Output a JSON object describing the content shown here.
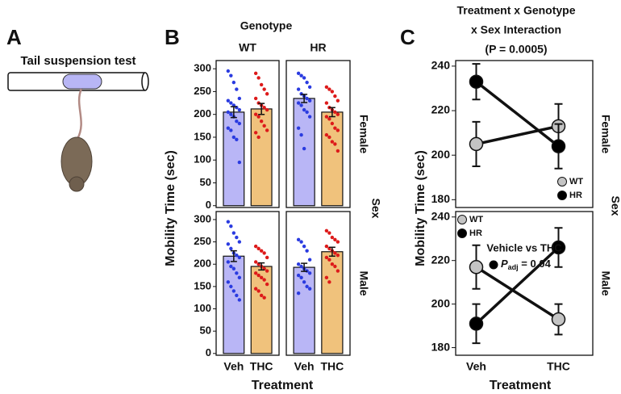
{
  "illustration": {
    "panel": "A",
    "title": "Tail suspension test"
  },
  "chart_data": [
    {
      "type": "bar",
      "panel": "B",
      "title": "Genotype",
      "column_labels": [
        "WT",
        "HR"
      ],
      "row_labels": [
        "Female",
        "Male"
      ],
      "row_title": "Sex",
      "y_label": "Mobility Time (sec)",
      "x_label": "Treatment",
      "categories": [
        "Veh",
        "THC"
      ],
      "ylim": [
        -4,
        318
      ],
      "yticks": [
        0,
        50,
        100,
        150,
        200,
        250,
        300
      ],
      "colors": [
        "#b9b6f6",
        "#f0c27c"
      ],
      "point_colors": [
        "#2a3be0",
        "#dd1a1a"
      ],
      "facets": [
        {
          "values": [
            205,
            212
          ],
          "errors": [
            12,
            12
          ],
          "points": [
            [
              295,
              285,
              270,
              255,
              235,
              230,
              225,
              220,
              215,
              210,
              205,
              200,
              195,
              185,
              180,
              170,
              165,
              150,
              145,
              95
            ],
            [
              290,
              280,
              265,
              255,
              245,
              235,
              225,
              220,
              215,
              210,
              200,
              195,
              185,
              175,
              165,
              160,
              150
            ]
          ]
        },
        {
          "values": [
            235,
            205
          ],
          "errors": [
            9,
            10
          ],
          "points": [
            [
              290,
              285,
              280,
              270,
              260,
              255,
              245,
              240,
              235,
              230,
              225,
              220,
              210,
              205,
              195,
              170,
              155,
              125
            ],
            [
              260,
              255,
              250,
              240,
              230,
              225,
              215,
              210,
              205,
              200,
              195,
              190,
              180,
              170,
              165,
              155,
              150,
              140,
              135,
              120
            ]
          ]
        },
        {
          "values": [
            218,
            195
          ],
          "errors": [
            12,
            8
          ],
          "points": [
            [
              295,
              285,
              270,
              260,
              250,
              245,
              235,
              225,
              220,
              215,
              205,
              195,
              190,
              180,
              170,
              160,
              150,
              140,
              130,
              120
            ],
            [
              240,
              235,
              230,
              225,
              215,
              205,
              200,
              195,
              190,
              185,
              180,
              175,
              170,
              165,
              155,
              145,
              140,
              130,
              125
            ]
          ]
        },
        {
          "values": [
            193,
            228
          ],
          "errors": [
            9,
            10
          ],
          "points": [
            [
              255,
              250,
              240,
              230,
              210,
              200,
              195,
              190,
              185,
              180,
              175,
              170,
              160,
              150,
              145,
              135
            ],
            [
              275,
              270,
              260,
              255,
              250,
              240,
              235,
              230,
              225,
              220,
              215,
              210,
              200,
              195,
              185,
              170,
              160
            ]
          ]
        }
      ]
    },
    {
      "type": "line",
      "panel": "C",
      "title": [
        "Treatment x Genotype",
        "x Sex Interaction"
      ],
      "subtitle": "(P = 0.0005)",
      "row_labels": [
        "Female",
        "Male"
      ],
      "row_title": "Sex",
      "y_label": "Mobility Time (sec)",
      "x_label": "Treatment",
      "categories": [
        "Veh",
        "THC"
      ],
      "ylim": [
        176.5,
        242.5
      ],
      "yticks": [
        180,
        200,
        220,
        240
      ],
      "facets": [
        {
          "legend": "lower right",
          "series": [
            {
              "name": "WT",
              "color": "#c4c4c4",
              "values": [
                205,
                213
              ],
              "errors": [
                10,
                10
              ]
            },
            {
              "name": "HR",
              "color": "#000000",
              "values": [
                233,
                204
              ],
              "errors": [
                8,
                10
              ]
            }
          ]
        },
        {
          "legend": "upper left",
          "series": [
            {
              "name": "WT",
              "color": "#c4c4c4",
              "values": [
                217,
                193
              ],
              "errors": [
                10,
                7
              ]
            },
            {
              "name": "HR",
              "color": "#000000",
              "values": [
                191,
                226
              ],
              "errors": [
                9,
                9
              ]
            }
          ],
          "annotation": {
            "title": "Vehicle vs THC",
            "stat": "P",
            "stat_sub": "adj",
            "stat_value": " = 0.04"
          }
        }
      ]
    }
  ]
}
